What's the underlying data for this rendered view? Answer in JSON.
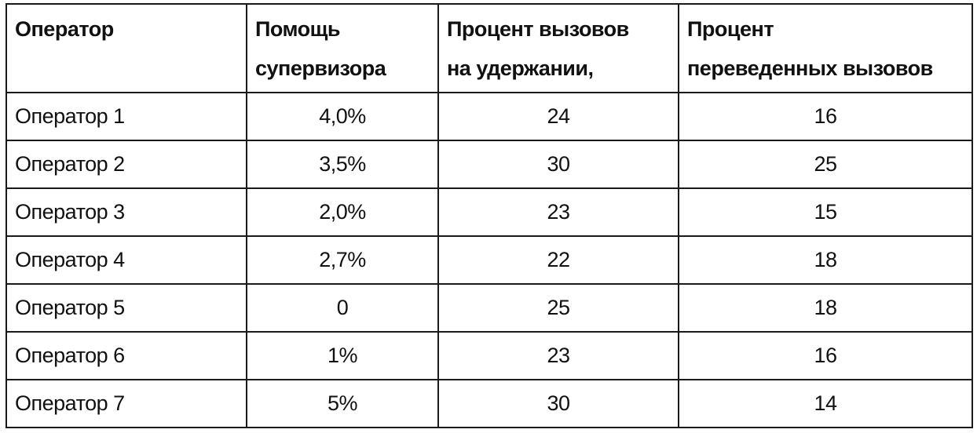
{
  "table": {
    "headers": [
      "Оператор",
      "Помощь супервизора",
      "Процент вызовов на удержании,",
      "Процент переведенных вызовов"
    ],
    "headers_lines": [
      [
        "Оператор",
        ""
      ],
      [
        "Помощь",
        "супервизора"
      ],
      [
        "Процент вызовов",
        "на удержании,"
      ],
      [
        "Процент",
        "переведенных вызовов"
      ]
    ],
    "rows": [
      [
        "Оператор 1",
        "4,0%",
        "24",
        "16"
      ],
      [
        "Оператор 2",
        "3,5%",
        "30",
        "25"
      ],
      [
        "Оператор 3",
        "2,0%",
        "23",
        "15"
      ],
      [
        "Оператор 4",
        "2,7%",
        "22",
        "18"
      ],
      [
        "Оператор 5",
        "0",
        "25",
        "18"
      ],
      [
        "Оператор 6",
        "1%",
        "23",
        "16"
      ],
      [
        "Оператор 7",
        "5%",
        "30",
        "14"
      ]
    ]
  }
}
